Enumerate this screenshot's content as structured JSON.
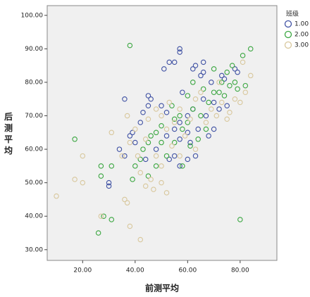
{
  "chart_data": {
    "type": "scatter",
    "xlabel": "前测平均",
    "ylabel": "后测平均",
    "legend_title": "班级",
    "legend": "right",
    "xlim": [
      6.5,
      94
    ],
    "ylim": [
      26.8,
      102.9
    ],
    "xticks": [
      {
        "value": 20,
        "label": "20.00"
      },
      {
        "value": 40,
        "label": "40.00"
      },
      {
        "value": 60,
        "label": "60.00"
      },
      {
        "value": 80,
        "label": "80.00"
      }
    ],
    "yticks": [
      {
        "value": 30,
        "label": "30.00"
      },
      {
        "value": 40,
        "label": "40.00"
      },
      {
        "value": 50,
        "label": "50.00"
      },
      {
        "value": 60,
        "label": "60.00"
      },
      {
        "value": 70,
        "label": "70.00"
      },
      {
        "value": 80,
        "label": "80.00"
      },
      {
        "value": 90,
        "label": "90.00"
      },
      {
        "value": 100,
        "label": "100.00"
      }
    ],
    "series": [
      {
        "name": "1.00",
        "color": "#3f51a3",
        "x": [
          57,
          57,
          53,
          55,
          51,
          63,
          62,
          66,
          65,
          66,
          78,
          79,
          73,
          74,
          36,
          45,
          46,
          45,
          50,
          52,
          43,
          42,
          39,
          38,
          40,
          34,
          36,
          30,
          30,
          44,
          48,
          52,
          55,
          57,
          60,
          62,
          64,
          66,
          70,
          72,
          58,
          57,
          55,
          53,
          61,
          60,
          67,
          69,
          75,
          63,
          60,
          57,
          70,
          68
        ],
        "values": [
          90,
          89,
          86,
          86,
          84,
          85,
          84,
          83,
          82,
          86,
          84,
          83,
          82,
          81,
          75,
          76,
          75,
          73,
          73,
          71,
          71,
          68,
          65,
          64,
          62,
          60,
          58,
          50,
          49,
          57,
          60,
          64,
          66,
          68,
          70,
          72,
          66,
          75,
          74,
          72,
          77,
          63,
          58,
          57,
          62,
          65,
          70,
          80,
          73,
          58,
          57,
          55,
          66,
          64
        ]
      },
      {
        "name": "2.00",
        "color": "#3aa640",
        "x": [
          38,
          17,
          27,
          27,
          31,
          26,
          28,
          31,
          80,
          84,
          81,
          77,
          75,
          70,
          73,
          78,
          72,
          66,
          62,
          60,
          57,
          55,
          50,
          48,
          45,
          43,
          42,
          40,
          39,
          45,
          48,
          52,
          55,
          58,
          60,
          62,
          65,
          68,
          70,
          74,
          76,
          79,
          82,
          64,
          61,
          58,
          67,
          54,
          50,
          46
        ],
        "values": [
          91,
          63,
          55,
          52,
          55,
          35,
          40,
          39,
          39,
          90,
          88,
          85,
          83,
          84,
          80,
          80,
          77,
          78,
          80,
          76,
          70,
          69,
          67,
          65,
          62,
          60,
          57,
          55,
          51,
          52,
          55,
          58,
          62,
          66,
          68,
          72,
          70,
          74,
          77,
          76,
          79,
          78,
          79,
          63,
          61,
          55,
          66,
          73,
          62,
          64
        ]
      },
      {
        "name": "3.00",
        "color": "#d8c79c",
        "x": [
          10,
          17,
          20,
          20,
          27,
          31,
          36,
          37,
          38,
          42,
          44,
          46,
          47,
          50,
          52,
          50,
          48,
          44,
          40,
          38,
          37,
          41,
          45,
          50,
          53,
          55,
          57,
          59,
          61,
          63,
          65,
          67,
          69,
          71,
          73,
          75,
          76,
          78,
          80,
          82,
          84,
          81,
          72,
          63,
          57,
          54,
          52,
          48,
          35,
          42
        ],
        "values": [
          46,
          51,
          58,
          50,
          40,
          65,
          45,
          44,
          37,
          33,
          49,
          51,
          48,
          50,
          47,
          55,
          58,
          63,
          66,
          62,
          70,
          58,
          69,
          70,
          74,
          68,
          72,
          64,
          69,
          75,
          77,
          68,
          72,
          70,
          74,
          69,
          71,
          75,
          74,
          77,
          82,
          86,
          80,
          60,
          58,
          61,
          66,
          72,
          58,
          53
        ]
      }
    ]
  }
}
